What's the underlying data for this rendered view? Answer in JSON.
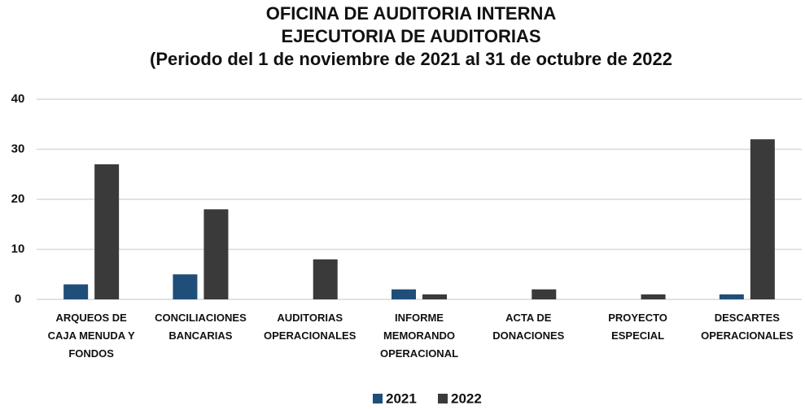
{
  "chart_data": {
    "type": "bar",
    "title": [
      "OFICINA DE AUDITORIA INTERNA",
      "EJECUTORIA DE AUDITORIAS",
      "(Periodo del 1 de noviembre de 2021 al 31 de octubre de 2022"
    ],
    "categories": [
      [
        "ARQUEOS DE",
        "CAJA MENUDA Y",
        "FONDOS"
      ],
      [
        "CONCILIACIONES",
        "BANCARIAS"
      ],
      [
        "AUDITORIAS",
        "OPERACIONALES"
      ],
      [
        "INFORME",
        "MEMORANDO",
        "OPERACIONAL"
      ],
      [
        "ACTA DE",
        "DONACIONES"
      ],
      [
        "PROYECTO",
        "ESPECIAL"
      ],
      [
        "DESCARTES",
        "OPERACIONALES"
      ]
    ],
    "series": [
      {
        "name": "2021",
        "color": "#1f4e79",
        "values": [
          3,
          5,
          0,
          2,
          0,
          0,
          1
        ]
      },
      {
        "name": "2022",
        "color": "#3a3a3a",
        "values": [
          27,
          18,
          8,
          1,
          2,
          1,
          32
        ]
      }
    ],
    "ylim": [
      0,
      40
    ],
    "yticks": [
      0,
      10,
      20,
      30,
      40
    ],
    "grid": true,
    "legend": "bottom"
  }
}
